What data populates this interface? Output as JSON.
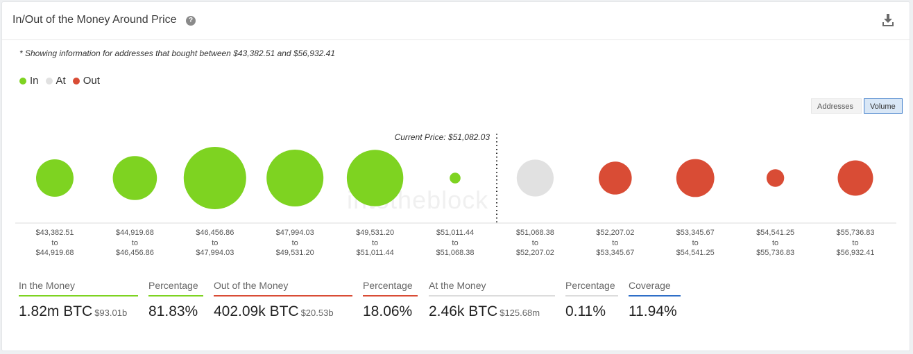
{
  "header": {
    "title": "In/Out of the Money Around Price",
    "help_icon": "?",
    "download_icon": "download-icon"
  },
  "note": "* Showing information for addresses that bought between $43,382.51 and $56,932.41",
  "legend": [
    {
      "label": "In",
      "color": "#7ed321"
    },
    {
      "label": "At",
      "color": "#e1e1e1"
    },
    {
      "label": "Out",
      "color": "#d94c35"
    }
  ],
  "toggles": {
    "addresses": "Addresses",
    "volume": "Volume",
    "selected": "Volume"
  },
  "watermark": "intotheblock",
  "chart_data": {
    "type": "bubble",
    "current_price_label": "Current Price: $51,082.03",
    "bubbles": [
      {
        "from": "$43,382.51",
        "to_word": "to",
        "to": "$44,919.68",
        "status": "in",
        "relative_size": 0.36
      },
      {
        "from": "$44,919.68",
        "to_word": "to",
        "to": "$46,456.86",
        "status": "in",
        "relative_size": 0.5
      },
      {
        "from": "$46,456.86",
        "to_word": "to",
        "to": "$47,994.03",
        "status": "in",
        "relative_size": 1.0
      },
      {
        "from": "$47,994.03",
        "to_word": "to",
        "to": "$49,531.20",
        "status": "in",
        "relative_size": 0.83
      },
      {
        "from": "$49,531.20",
        "to_word": "to",
        "to": "$51,011.44",
        "status": "in",
        "relative_size": 0.82
      },
      {
        "from": "$51,011.44",
        "to_word": "to",
        "to": "$51,068.38",
        "status": "in",
        "relative_size": 0.03
      },
      {
        "from": "$51,068.38",
        "to_word": "to",
        "to": "$52,207.02",
        "status": "at",
        "relative_size": 0.35
      },
      {
        "from": "$52,207.02",
        "to_word": "to",
        "to": "$53,345.67",
        "status": "out",
        "relative_size": 0.28
      },
      {
        "from": "$53,345.67",
        "to_word": "to",
        "to": "$54,541.25",
        "status": "out",
        "relative_size": 0.37
      },
      {
        "from": "$54,541.25",
        "to_word": "to",
        "to": "$55,736.83",
        "status": "out",
        "relative_size": 0.08
      },
      {
        "from": "$55,736.83",
        "to_word": "to",
        "to": "$56,932.41",
        "status": "out",
        "relative_size": 0.32
      }
    ]
  },
  "stats": [
    {
      "label": "In the Money",
      "value": "1.82m BTC",
      "sub": "$93.01b",
      "color": "#7ed321"
    },
    {
      "label": "Percentage",
      "value": "81.83%",
      "sub": "",
      "color": "#7ed321"
    },
    {
      "label": "Out of the Money",
      "value": "402.09k BTC",
      "sub": "$20.53b",
      "color": "#d94c35"
    },
    {
      "label": "Percentage",
      "value": "18.06%",
      "sub": "",
      "color": "#d94c35"
    },
    {
      "label": "At the Money",
      "value": "2.46k BTC",
      "sub": "$125.68m",
      "color": "#dcdcdc"
    },
    {
      "label": "Percentage",
      "value": "0.11%",
      "sub": "",
      "color": "#dcdcdc"
    },
    {
      "label": "Coverage",
      "value": "11.94%",
      "sub": "",
      "color": "#2f6fc8"
    }
  ]
}
